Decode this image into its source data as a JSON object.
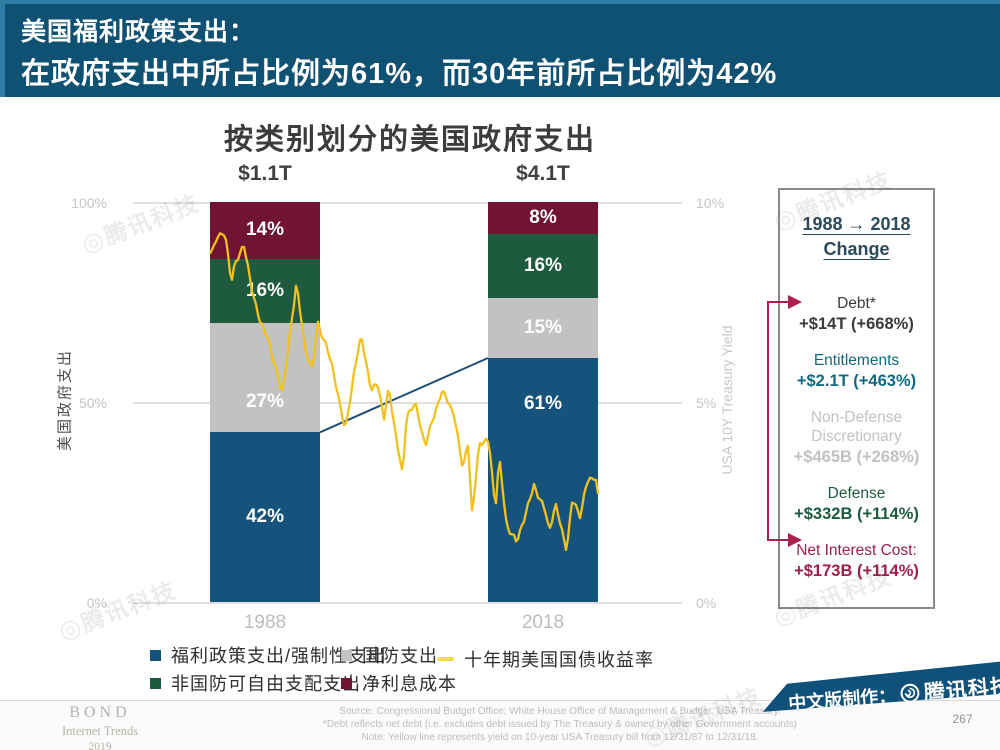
{
  "header": {
    "line1": "美国福利政策支出：",
    "line2": "在政府支出中所占比例为61%，而30年前所占比例为42%",
    "bg_color": "#0E5173"
  },
  "chart_data": {
    "type": "bar",
    "title": "按类别划分的美国政府支出",
    "categories": [
      "1988",
      "2018"
    ],
    "totals": [
      "$1.1T",
      "$4.1T"
    ],
    "unit": "%",
    "series": [
      {
        "name": "福利政策支出/强制性支出",
        "color": "#15537D",
        "values": [
          42,
          61
        ]
      },
      {
        "name": "国防支出",
        "color": "#C2C2C2",
        "values": [
          27,
          15
        ]
      },
      {
        "name": "非国防可自由支配支出",
        "color": "#1E5B3E",
        "values": [
          16,
          16
        ]
      },
      {
        "name": "净利息成本",
        "color": "#701432",
        "values": [
          14,
          8
        ]
      }
    ],
    "left_axis": {
      "label": "美国政府支出",
      "ticks": [
        "100%",
        "50%",
        "0%"
      ],
      "range": [
        0,
        100
      ]
    },
    "right_axis": {
      "label": "USA 10Y Treasury Yield",
      "ticks": [
        "10%",
        "5%",
        "0%"
      ],
      "range": [
        0,
        10
      ]
    },
    "line": {
      "name": "十年期美国国债收益率",
      "color": "#F3C11B",
      "legend_color": "#EFDC4D",
      "x_range": [
        1988,
        2019
      ],
      "points": [
        [
          1988.0,
          8.8
        ],
        [
          1988.3,
          8.9
        ],
        [
          1988.6,
          9.2
        ],
        [
          1989.2,
          9.3
        ],
        [
          1989.7,
          7.9
        ],
        [
          1990.0,
          8.4
        ],
        [
          1990.7,
          8.9
        ],
        [
          1991.3,
          8.0
        ],
        [
          1992.0,
          7.0
        ],
        [
          1992.6,
          6.6
        ],
        [
          1993.0,
          6.0
        ],
        [
          1993.8,
          5.3
        ],
        [
          1994.9,
          8.0
        ],
        [
          1995.6,
          6.2
        ],
        [
          1996.2,
          5.8
        ],
        [
          1996.6,
          7.0
        ],
        [
          1997.3,
          6.5
        ],
        [
          1998.0,
          5.5
        ],
        [
          1998.8,
          4.2
        ],
        [
          1999.6,
          6.0
        ],
        [
          2000.1,
          6.7
        ],
        [
          2000.9,
          5.2
        ],
        [
          2001.4,
          5.4
        ],
        [
          2001.9,
          4.6
        ],
        [
          2002.3,
          5.4
        ],
        [
          2003.4,
          3.1
        ],
        [
          2003.7,
          4.6
        ],
        [
          2004.4,
          4.9
        ],
        [
          2005.2,
          4.0
        ],
        [
          2005.8,
          4.6
        ],
        [
          2006.5,
          5.2
        ],
        [
          2007.5,
          4.7
        ],
        [
          2008.2,
          3.4
        ],
        [
          2008.6,
          4.1
        ],
        [
          2008.95,
          2.1
        ],
        [
          2009.5,
          3.9
        ],
        [
          2010.3,
          4.0
        ],
        [
          2010.8,
          2.4
        ],
        [
          2011.1,
          3.7
        ],
        [
          2011.7,
          1.9
        ],
        [
          2012.5,
          1.4
        ],
        [
          2013.0,
          2.0
        ],
        [
          2013.9,
          3.0
        ],
        [
          2014.8,
          2.2
        ],
        [
          2015.1,
          1.7
        ],
        [
          2015.6,
          2.4
        ],
        [
          2016.5,
          1.4
        ],
        [
          2016.95,
          2.6
        ],
        [
          2017.6,
          2.1
        ],
        [
          2018.1,
          2.9
        ],
        [
          2018.8,
          3.2
        ],
        [
          2019.0,
          2.7
        ]
      ]
    },
    "connector_color": "#1F4E79",
    "annotation_arrow_color": "#AD1F51"
  },
  "change_panel": {
    "title_line1": "1988 → 2018",
    "title_line2": "Change",
    "items": [
      {
        "label": "Debt*",
        "value": "+$14T (+668%)",
        "color": "#3A3A3A"
      },
      {
        "label": "Entitlements",
        "value": "+$2.1T (+463%)",
        "color": "#0F6A81"
      },
      {
        "label": "Non-Defense Discretionary",
        "value": "+$465B (+268%)",
        "color": "#C2C2C2"
      },
      {
        "label": "Defense",
        "value": "+$332B (+114%)",
        "color": "#1E5B3E"
      },
      {
        "label": "Net Interest Cost:",
        "value": "+$173B (+114%)",
        "color": "#A01D4D"
      }
    ]
  },
  "footer": {
    "brand_line1": "BOND",
    "brand_line2": "Internet Trends",
    "brand_line3": "2019",
    "source_line1": "Source: Congressional Budget Office; White House Office of Management & Budget, USA Treasury.",
    "source_line2": "*Debt reflects net debt (i.e. excludes debt issued by The Treasury & owned by other Government accounts)",
    "source_line3": "Note: Yellow line represents yield on 10-year USA Treasury bill from 12/31/87 to 12/31/18.",
    "credit_prefix": "中文版制作：",
    "credit_brand": "腾讯科技",
    "page_number": "267"
  },
  "watermark": {
    "text": "腾讯科技"
  }
}
